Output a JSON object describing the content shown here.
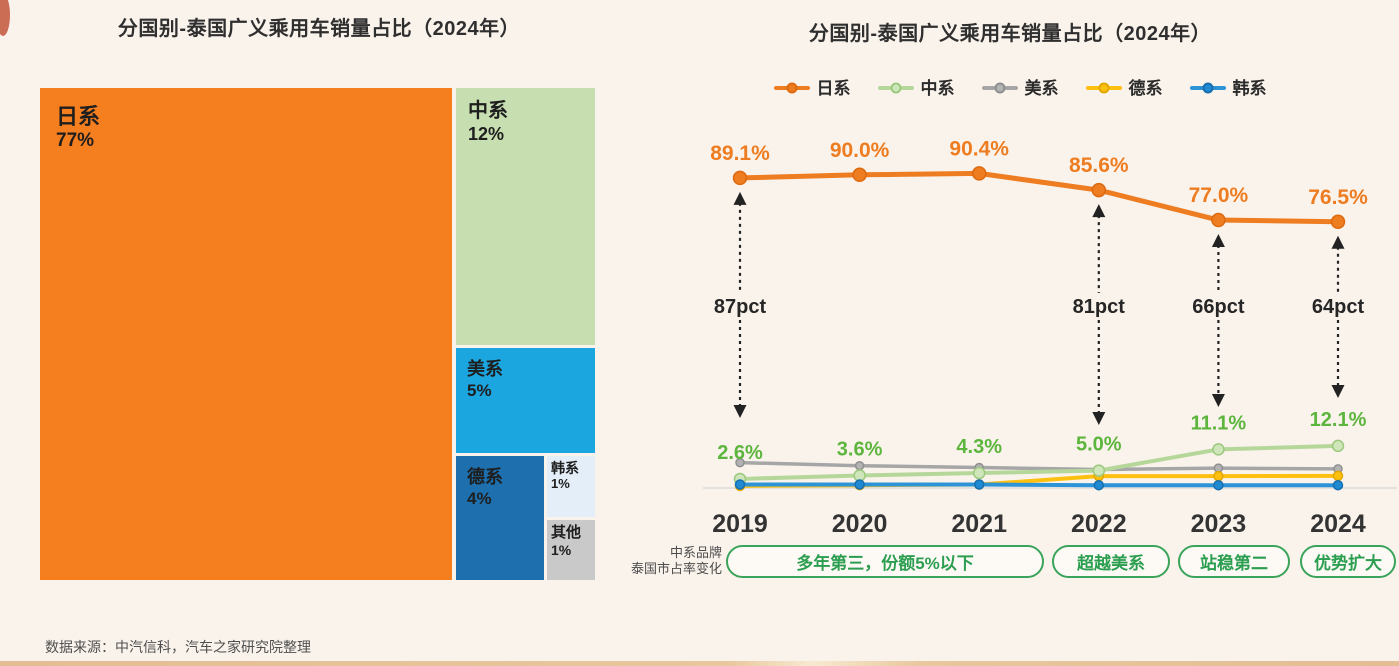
{
  "left_chart": {
    "title": "分国别-泰国广义乘用车销量占比（2024年）"
  },
  "right_chart": {
    "title": "分国别-泰国广义乘用车销量占比（2024年）"
  },
  "annotation": {
    "side_label_line1": "中系品牌",
    "side_label_line2": "泰国市占率变化",
    "pills": [
      "多年第三，份额5%以下",
      "超越美系",
      "站稳第二",
      "优势扩大"
    ]
  },
  "source": "数据来源：中汽信科，汽车之家研究院整理",
  "colors": {
    "background": "#faf3ec",
    "pill_green": "#2c9e50",
    "arrow_black": "#222222",
    "axis_gray": "#dcdcdc"
  },
  "chart_data": [
    {
      "type": "treemap",
      "title": "分国别-泰国广义乘用车销量占比（2024年）",
      "blocks": [
        {
          "id": "japan",
          "label": "日系",
          "value": 77,
          "value_label": "77%",
          "color": "#f57e1f"
        },
        {
          "id": "china",
          "label": "中系",
          "value": 12,
          "value_label": "12%",
          "color": "#c7dfb0"
        },
        {
          "id": "usa",
          "label": "美系",
          "value": 5,
          "value_label": "5%",
          "color": "#1ca6e0"
        },
        {
          "id": "germany",
          "label": "德系",
          "value": 4,
          "value_label": "4%",
          "color": "#1d6fae"
        },
        {
          "id": "korea",
          "label": "韩系",
          "value": 1,
          "value_label": "1%",
          "color": "#e4eef8"
        },
        {
          "id": "other",
          "label": "其他",
          "value": 1,
          "value_label": "1%",
          "color": "#c9c9c9"
        }
      ]
    },
    {
      "type": "line",
      "title": "分国别-泰国广义乘用车销量占比（2024年）",
      "x": [
        "2019",
        "2020",
        "2021",
        "2022",
        "2023",
        "2024"
      ],
      "ylabel": "",
      "ylim": [
        0,
        100
      ],
      "grid": false,
      "legend_position": "top",
      "series": [
        {
          "name": "日系",
          "color": "#ee7c20",
          "marker_fill": "#ee7c20",
          "marker_stroke": "#de6a10",
          "values": [
            89.1,
            90.0,
            90.4,
            85.6,
            77.0,
            76.5
          ],
          "labels": [
            "89.1%",
            "90.0%",
            "90.4%",
            "85.6%",
            "77.0%",
            "76.5%"
          ],
          "label_color": "#ee7c20"
        },
        {
          "name": "中系",
          "color": "#b6d79a",
          "marker_fill": "#cfe6bb",
          "marker_stroke": "#9cc97e",
          "values": [
            2.6,
            3.6,
            4.3,
            5.0,
            11.1,
            12.1
          ],
          "labels": [
            "2.6%",
            "3.6%",
            "4.3%",
            "5.0%",
            "11.1%",
            "12.1%"
          ],
          "label_color": "#5cb53c"
        },
        {
          "name": "美系",
          "color": "#a6a6a6",
          "marker_fill": "#b3b3b3",
          "marker_stroke": "#8f8f8f",
          "values": [
            7.3,
            6.4,
            5.9,
            5.3,
            5.7,
            5.5
          ]
        },
        {
          "name": "德系",
          "color": "#fdc010",
          "marker_fill": "#fdc010",
          "marker_stroke": "#e2a800",
          "values": [
            0.6,
            0.8,
            1.0,
            3.4,
            3.4,
            3.5
          ]
        },
        {
          "name": "韩系",
          "color": "#2d94d8",
          "marker_fill": "#1f8ad2",
          "marker_stroke": "#176fb0",
          "values": [
            1.0,
            1.0,
            1.0,
            0.8,
            0.8,
            0.8
          ]
        }
      ],
      "gap_arrows": [
        {
          "x": "2019",
          "label": "87pct"
        },
        {
          "x": "2022",
          "label": "81pct"
        },
        {
          "x": "2023",
          "label": "66pct"
        },
        {
          "x": "2024",
          "label": "64pct"
        }
      ]
    }
  ]
}
